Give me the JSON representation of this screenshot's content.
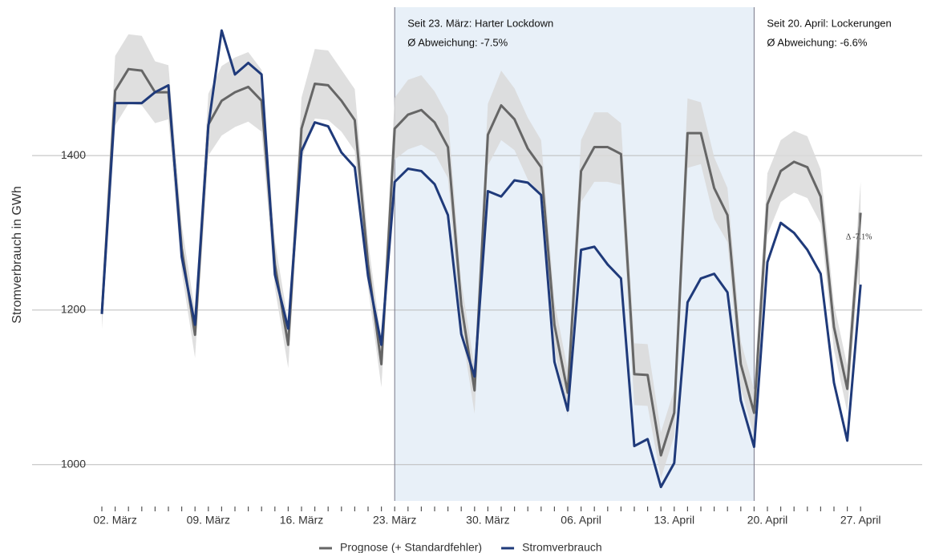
{
  "chart_data": {
    "type": "line",
    "y_label": "Stromverbrauch in GWh",
    "categories": [
      null,
      "02. März",
      null,
      null,
      null,
      null,
      null,
      null,
      "09. März",
      null,
      null,
      null,
      null,
      null,
      null,
      "16. März",
      null,
      null,
      null,
      null,
      null,
      null,
      "23. März",
      null,
      null,
      null,
      null,
      null,
      null,
      "30. März",
      null,
      null,
      null,
      null,
      null,
      null,
      "06. April",
      null,
      null,
      null,
      null,
      null,
      null,
      "13. April",
      null,
      null,
      null,
      null,
      null,
      null,
      "20. April",
      null,
      null,
      null,
      null,
      null,
      null,
      "27. April"
    ],
    "series": [
      {
        "name": "Prognose (+ Standardfehler)",
        "color": "#666666",
        "band_color": "#d9d9d9",
        "values": [
          1195,
          1484,
          1512,
          1510,
          1482,
          1482,
          1280,
          1168,
          1440,
          1471,
          1482,
          1489,
          1471,
          1259,
          1155,
          1435,
          1493,
          1491,
          1471,
          1446,
          1259,
          1130,
          1435,
          1453,
          1459,
          1443,
          1411,
          1207,
          1096,
          1427,
          1465,
          1447,
          1409,
          1385,
          1181,
          1093,
          1380,
          1411,
          1411,
          1402,
          1117,
          1116,
          1012,
          1067,
          1429,
          1429,
          1358,
          1323,
          1130,
          1067,
          1337,
          1380,
          1392,
          1385,
          1347,
          1178,
          1098,
          1326
        ],
        "errors": [
          20,
          45,
          45,
          45,
          40,
          35,
          30,
          30,
          40,
          45,
          45,
          45,
          40,
          30,
          30,
          40,
          45,
          45,
          40,
          40,
          30,
          30,
          40,
          45,
          45,
          40,
          40,
          30,
          30,
          40,
          45,
          40,
          40,
          35,
          30,
          30,
          40,
          45,
          45,
          40,
          40,
          40,
          30,
          30,
          45,
          40,
          40,
          35,
          30,
          30,
          40,
          40,
          40,
          40,
          35,
          30,
          30,
          40
        ]
      },
      {
        "name": "Stromverbrauch",
        "color": "#1f3a7a",
        "values": [
          1195,
          1468,
          1468,
          1468,
          1482,
          1491,
          1269,
          1181,
          1438,
          1562,
          1505,
          1520,
          1505,
          1246,
          1176,
          1406,
          1443,
          1438,
          1404,
          1385,
          1244,
          1155,
          1366,
          1383,
          1380,
          1363,
          1323,
          1169,
          1114,
          1354,
          1347,
          1368,
          1365,
          1349,
          1133,
          1070,
          1278,
          1282,
          1259,
          1241,
          1024,
          1033,
          971,
          1002,
          1210,
          1241,
          1247,
          1223,
          1083,
          1023,
          1262,
          1313,
          1300,
          1278,
          1247,
          1106,
          1031,
          1233
        ]
      }
    ],
    "ylim": [
      953,
      1590
    ],
    "yticks": [
      1000,
      1200,
      1400
    ],
    "grid": true,
    "regions": [
      {
        "from": "23. März",
        "text": [
          "Seit 23. März: Harter Lockdown",
          "Ø Abweichung: -7.5%"
        ],
        "color": "#e8f0f8"
      },
      {
        "from": "20. April",
        "text": [
          "Seit 20. April: Lockerungen",
          "Ø Abweichung: -6.6%"
        ]
      }
    ],
    "delta_label": "Δ -7.1%",
    "legend": "bottom"
  }
}
